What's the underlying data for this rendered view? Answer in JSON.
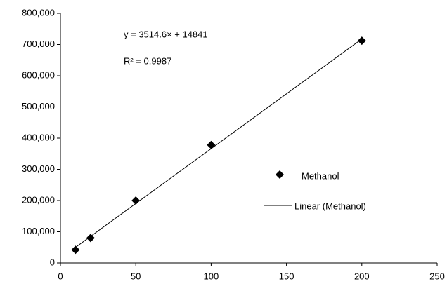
{
  "chart_data": {
    "type": "scatter",
    "series": [
      {
        "name": "Methanol",
        "color": "#000000",
        "x": [
          10,
          20,
          50,
          100,
          200
        ],
        "values": [
          42000,
          80000,
          200000,
          378000,
          712000
        ]
      }
    ],
    "trendline": {
      "name": "Linear (Methanol)",
      "color": "#000000",
      "x": [
        10,
        200
      ],
      "values": [
        49987,
        717761
      ]
    },
    "annotations": [
      "y = 3514.6× + 14841",
      "R² = 0.9987"
    ],
    "xlim": [
      0,
      250
    ],
    "xticks": [
      0,
      50,
      100,
      150,
      200,
      250
    ],
    "ylim": [
      0,
      800000
    ],
    "yticks": [
      0,
      {
        "value": 100000,
        "label": "100,000"
      },
      {
        "value": 200000,
        "label": "200,000"
      },
      {
        "value": 300000,
        "label": "300,000"
      },
      {
        "value": 400000,
        "label": "400,000"
      },
      {
        "value": 500000,
        "label": "500,000"
      },
      {
        "value": 600000,
        "label": "600,000"
      },
      {
        "value": 700000,
        "label": "700,000"
      },
      {
        "value": 800000,
        "label": "800,000"
      }
    ],
    "grid": false
  }
}
